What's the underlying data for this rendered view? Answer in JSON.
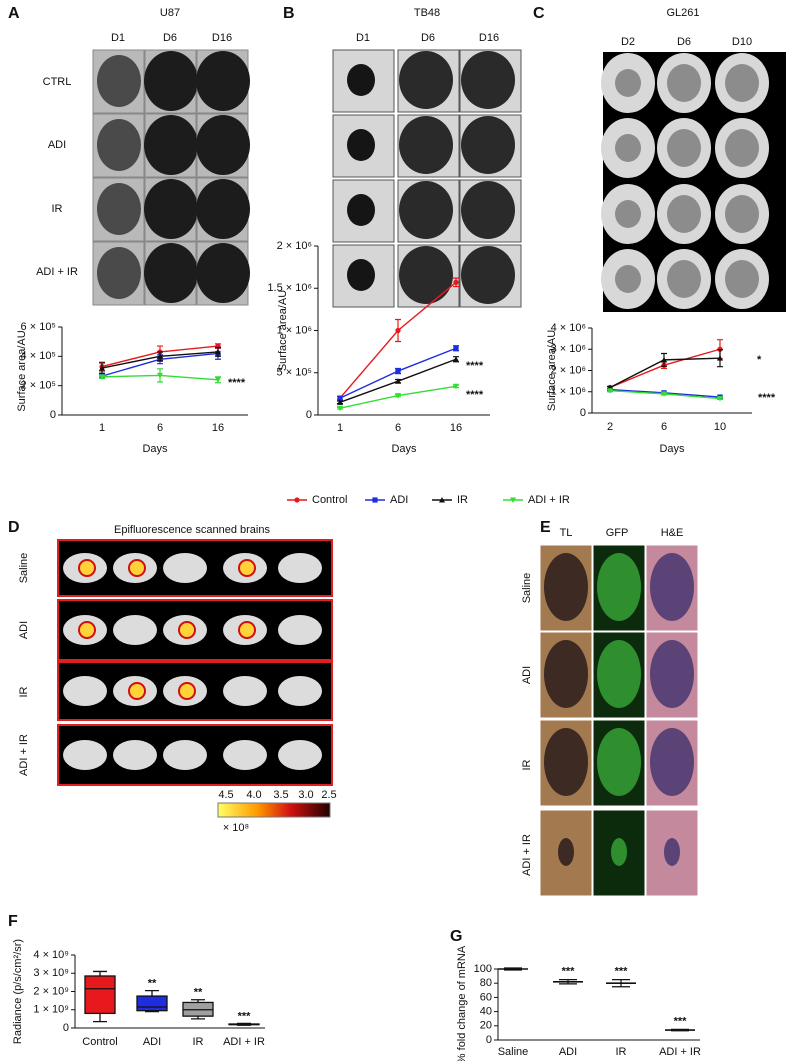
{
  "panels": [
    {
      "letter": "A",
      "title": "U87",
      "columns": [
        "D1",
        "D6",
        "D16"
      ],
      "rows": [
        "CTRL",
        "ADI",
        "IR",
        "ADI + IR"
      ]
    },
    {
      "letter": "B",
      "title": "TB48",
      "columns": [
        "D1",
        "D6",
        "D16"
      ]
    },
    {
      "letter": "C",
      "title": "GL261",
      "columns": [
        "D2",
        "D6",
        "D10"
      ]
    },
    {
      "letter": "D",
      "title": "Epifluorescence scanned brains",
      "rows": [
        "Saline",
        "ADI",
        "IR",
        "ADI + IR"
      ],
      "colorbar_ticks": [
        "4.5",
        "4.0",
        "3.5",
        "3.0",
        "2.5"
      ],
      "colorbar_unit": "× 10⁸"
    },
    {
      "letter": "E",
      "columns": [
        "TL",
        "GFP",
        "H&E"
      ],
      "rows": [
        "Saline",
        "ADI",
        "IR",
        "ADI + IR"
      ]
    },
    {
      "letter": "F"
    },
    {
      "letter": "G"
    }
  ],
  "chart_data": [
    {
      "type": "line",
      "categories": [
        "1",
        "6",
        "16"
      ],
      "xlabel": "Days",
      "ylabel": "Surface area/AU",
      "ylim": [
        0,
        600000
      ],
      "yticks": [
        0,
        {
          "value": 200000,
          "label": "2 × 10⁵"
        },
        {
          "value": 400000,
          "label": "4 × 10⁵"
        },
        {
          "value": 600000,
          "label": "6 × 10⁵"
        }
      ],
      "series": [
        {
          "name": "Control",
          "color": "#e8191c",
          "values": [
            330000,
            430000,
            470000
          ],
          "errors": [
            30000,
            40000,
            15000
          ]
        },
        {
          "name": "ADI",
          "color": "#1f2de0",
          "values": [
            265000,
            380000,
            420000
          ],
          "errors": [
            15000,
            30000,
            40000
          ]
        },
        {
          "name": "IR",
          "color": "#111111",
          "values": [
            320000,
            400000,
            430000
          ],
          "errors": [
            35000,
            30000,
            30000
          ]
        },
        {
          "name": "ADI + IR",
          "color": "#33dd33",
          "values": [
            260000,
            270000,
            240000
          ],
          "errors": [
            10000,
            45000,
            20000
          ]
        }
      ],
      "annotations": [
        "****"
      ]
    },
    {
      "type": "line",
      "categories": [
        "1",
        "6",
        "16"
      ],
      "xlabel": "Days",
      "ylabel": "Surface area/AU",
      "ylim": [
        0,
        2000000
      ],
      "yticks": [
        0,
        {
          "value": 500000,
          "label": "5 × 10⁵"
        },
        {
          "value": 1000000,
          "label": "1 × 10⁶"
        },
        {
          "value": 1500000,
          "label": "1.5 × 10⁶"
        },
        {
          "value": 2000000,
          "label": "2 × 10⁶"
        }
      ],
      "series": [
        {
          "color": "#e8191c",
          "values": [
            200000,
            1000000,
            1570000
          ],
          "errors": [
            20000,
            130000,
            50000
          ]
        },
        {
          "color": "#1f2de0",
          "values": [
            200000,
            520000,
            790000
          ],
          "errors": [
            20000,
            30000,
            30000
          ]
        },
        {
          "color": "#111111",
          "values": [
            150000,
            400000,
            660000
          ],
          "errors": [
            15000,
            20000,
            30000
          ]
        },
        {
          "color": "#33dd33",
          "values": [
            80000,
            230000,
            340000
          ],
          "errors": [
            10000,
            15000,
            15000
          ]
        }
      ],
      "annotations": [
        "****",
        "****"
      ]
    },
    {
      "type": "line",
      "categories": [
        "2",
        "6",
        "10"
      ],
      "xlabel": "Days",
      "ylabel": "Surface area/AU",
      "ylim": [
        0,
        4000000
      ],
      "yticks": [
        0,
        {
          "value": 1000000,
          "label": "1 × 10⁶"
        },
        {
          "value": 2000000,
          "label": "2 × 10⁶"
        },
        {
          "value": 3000000,
          "label": "3 × 10⁶"
        },
        {
          "value": 4000000,
          "label": "4 × 10⁶"
        }
      ],
      "series": [
        {
          "color": "#e8191c",
          "values": [
            1200000,
            2250000,
            3000000
          ],
          "errors": [
            50000,
            150000,
            450000
          ]
        },
        {
          "color": "#1f2de0",
          "values": [
            1100000,
            950000,
            750000
          ],
          "errors": [
            40000,
            40000,
            40000
          ]
        },
        {
          "color": "#111111",
          "values": [
            1200000,
            2500000,
            2580000
          ],
          "errors": [
            50000,
            300000,
            400000
          ]
        },
        {
          "color": "#33dd33",
          "values": [
            1050000,
            900000,
            680000
          ],
          "errors": [
            40000,
            40000,
            40000
          ]
        }
      ],
      "annotations": [
        "*",
        "****"
      ]
    },
    {
      "type": "box",
      "categories": [
        "Control",
        "ADI",
        "IR",
        "ADI + IR"
      ],
      "ylabel": "Radiance (p/s/cm²/sr)",
      "ylim": [
        0,
        4000000000
      ],
      "yticks": [
        0,
        {
          "value": 1000000000,
          "label": "1 × 10⁹"
        },
        {
          "value": 2000000000,
          "label": "2 × 10⁹"
        },
        {
          "value": 3000000000,
          "label": "3 × 10⁹"
        },
        {
          "value": 4000000000,
          "label": "4 × 10⁹"
        }
      ],
      "boxes": [
        {
          "min": 350000000,
          "q1": 800000000,
          "median": 2150000000,
          "q3": 2850000000,
          "max": 3100000000,
          "color": "#e8191c"
        },
        {
          "min": 900000000,
          "q1": 950000000,
          "median": 1150000000,
          "q3": 1750000000,
          "max": 2050000000,
          "color": "#1f2de0"
        },
        {
          "min": 500000000,
          "q1": 650000000,
          "median": 1000000000,
          "q3": 1400000000,
          "max": 1550000000,
          "color": "#a0a0a0"
        },
        {
          "min": 150000000,
          "q1": 180000000,
          "median": 200000000,
          "q3": 220000000,
          "max": 250000000,
          "color": "#222222"
        }
      ],
      "annotations": [
        "**",
        "**",
        "***"
      ]
    },
    {
      "type": "errorbar",
      "categories": [
        "Saline",
        "ADI",
        "IR",
        "ADI + IR"
      ],
      "ylabel": "% fold change of mRNA",
      "ylim": [
        0,
        100
      ],
      "yticks": [
        0,
        20,
        40,
        60,
        80,
        100
      ],
      "values": [
        100,
        82,
        80,
        14
      ],
      "errors": [
        1.5,
        3,
        5,
        1
      ],
      "annotations": [
        "***",
        "***",
        "***"
      ]
    }
  ]
}
